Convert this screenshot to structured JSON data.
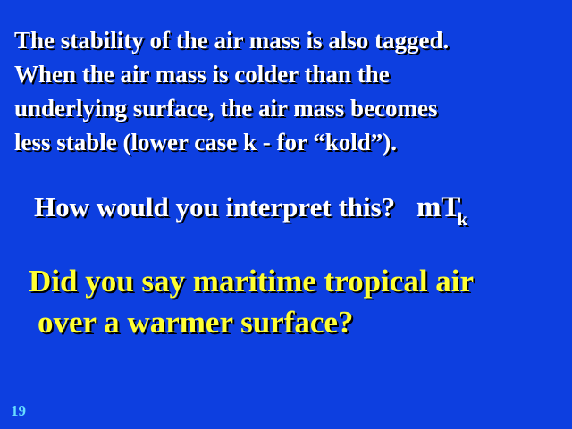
{
  "intro": {
    "lines": [
      "The stability of the air mass is also tagged.",
      "When the air mass is colder than the",
      "underlying surface, the air mass becomes",
      "less stable (lower case k - for “kold”)."
    ]
  },
  "question": {
    "text": "How would you interpret this?",
    "symbol_main": "mT",
    "symbol_sub": "k"
  },
  "answer": {
    "lines": [
      "Did you say maritime tropical air",
      "over a warmer surface?"
    ]
  },
  "page_number": "19",
  "colors": {
    "background": "#0d3fe0",
    "text": "#ffffff",
    "answer_text": "#ffff33",
    "page_number": "#66ddff"
  }
}
